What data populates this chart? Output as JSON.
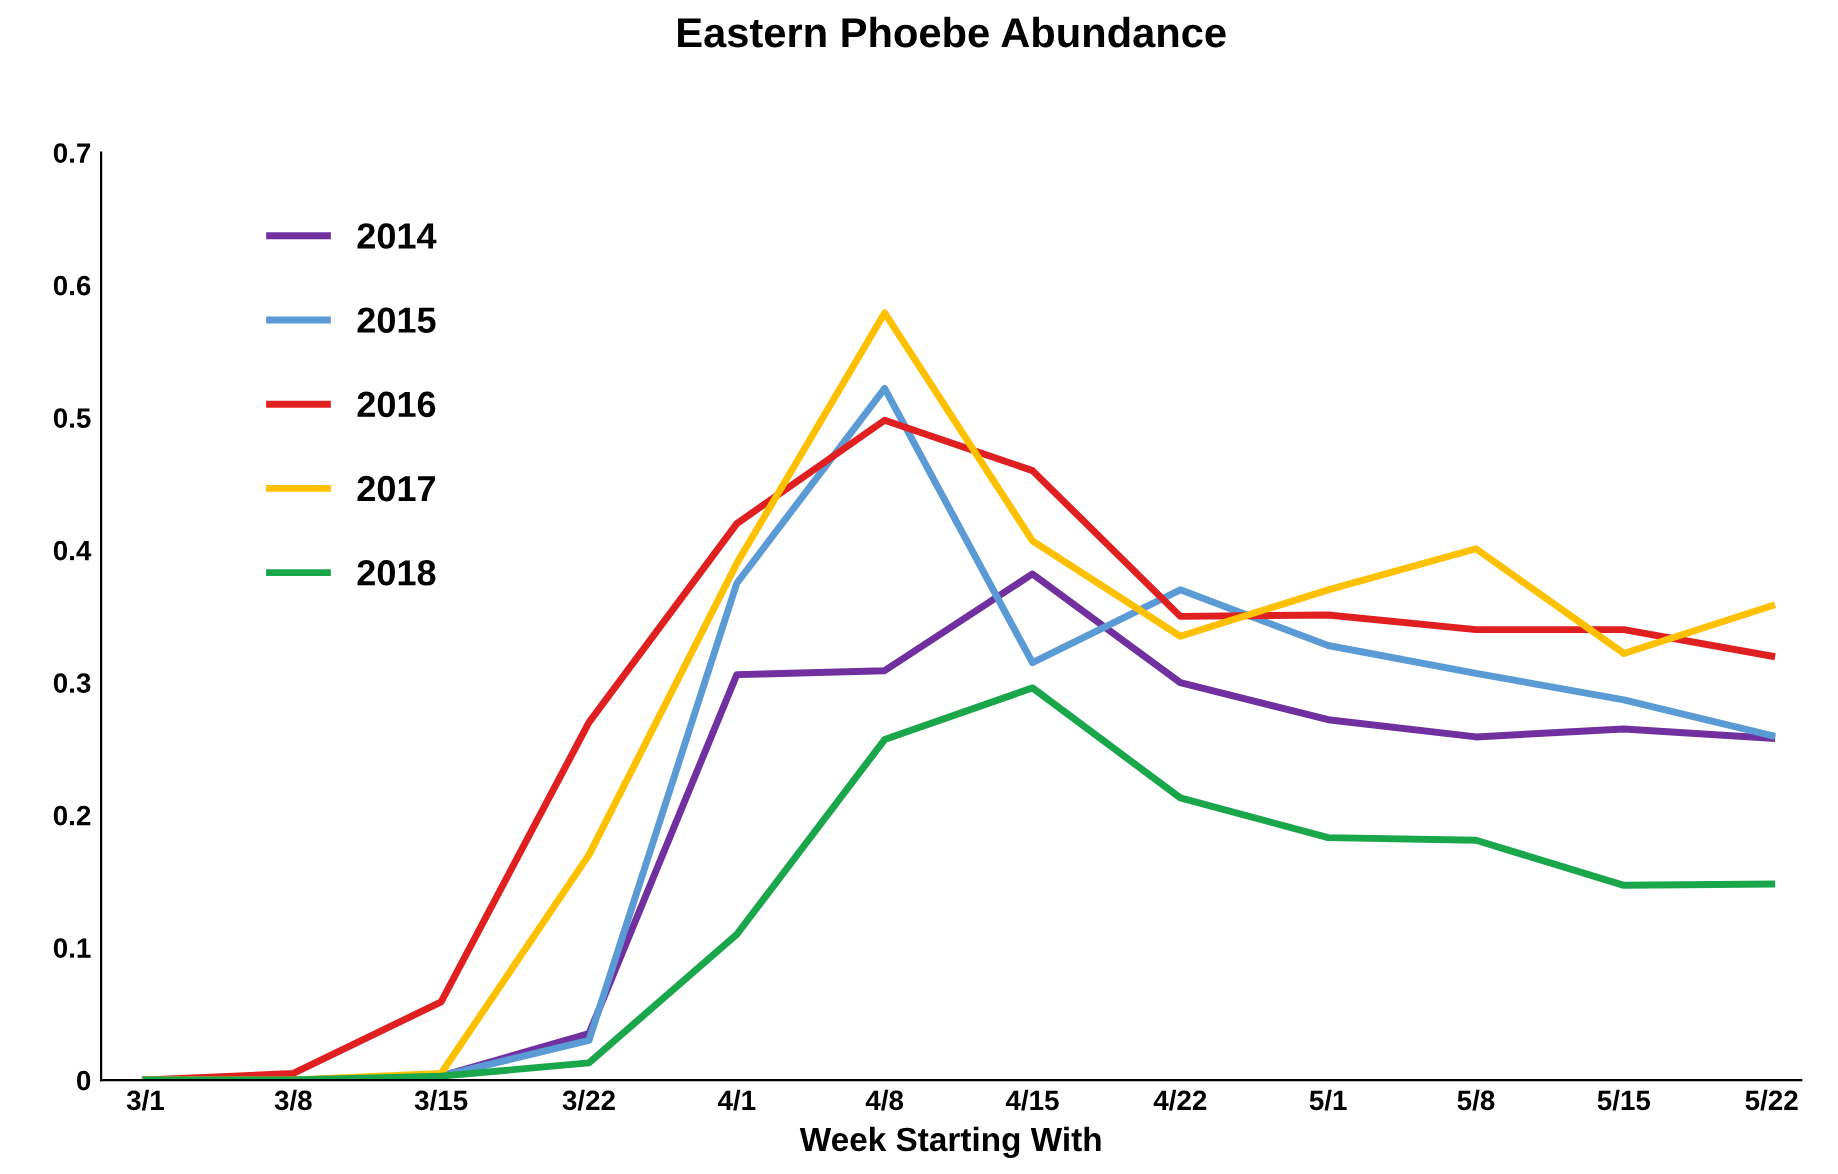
{
  "chart_data": {
    "type": "line",
    "title": "Eastern Phoebe Abundance",
    "xlabel": "Week Starting With",
    "categories": [
      "3/1",
      "3/8",
      "3/15",
      "3/22",
      "4/1",
      "4/8",
      "4/15",
      "4/22",
      "5/1",
      "5/8",
      "5/15",
      "5/22"
    ],
    "series": [
      {
        "name": "2014",
        "color": "#7030a0",
        "values": [
          0,
          0,
          0.003,
          0.035,
          0.306,
          0.309,
          0.382,
          0.3,
          0.272,
          0.259,
          0.265,
          0.258
        ]
      },
      {
        "name": "2015",
        "color": "#5b9bd5",
        "values": [
          0,
          0,
          0.003,
          0.03,
          0.375,
          0.522,
          0.315,
          0.37,
          0.328,
          0.307,
          0.287,
          0.26
        ]
      },
      {
        "name": "2016",
        "color": "#e02020",
        "values": [
          0,
          0.005,
          0.059,
          0.27,
          0.42,
          0.498,
          0.46,
          0.35,
          0.351,
          0.34,
          0.34,
          0.32
        ]
      },
      {
        "name": "2017",
        "color": "#ffc000",
        "values": [
          0,
          0,
          0.005,
          0.17,
          0.39,
          0.579,
          0.407,
          0.335,
          0.37,
          0.401,
          0.322,
          0.358
        ]
      },
      {
        "name": "2018",
        "color": "#1aa64a",
        "values": [
          0,
          0,
          0.003,
          0.013,
          0.11,
          0.257,
          0.296,
          0.213,
          0.183,
          0.181,
          0.147,
          0.148
        ]
      }
    ],
    "ylim": [
      0,
      0.7
    ],
    "yticks": [
      0,
      0.1,
      0.2,
      0.3,
      0.4,
      0.5,
      0.6,
      0.7
    ],
    "grid": false,
    "legend": "top left",
    "marker": "none",
    "line_style": "solid"
  }
}
